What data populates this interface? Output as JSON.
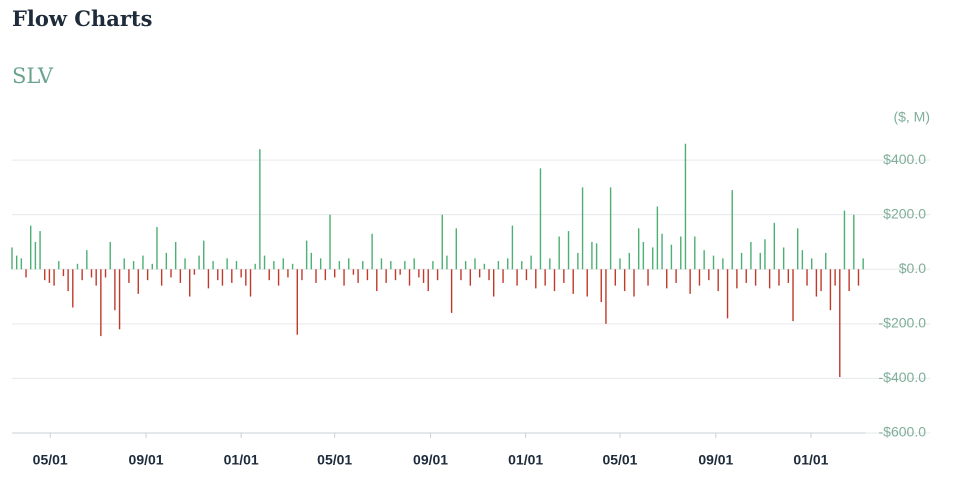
{
  "header": {
    "title": "Flow Charts"
  },
  "chart_data": {
    "type": "bar",
    "title": "SLV",
    "y_unit": "($, M)",
    "positive_color": "#4caf73",
    "negative_color": "#c0392b",
    "grid": true,
    "xlim": [
      0,
      1095
    ],
    "ylim": [
      -600,
      470
    ],
    "xticks": [
      {
        "value": 49,
        "label": "05/01"
      },
      {
        "value": 172,
        "label": "09/01"
      },
      {
        "value": 294,
        "label": "01/01"
      },
      {
        "value": 414,
        "label": "05/01"
      },
      {
        "value": 537,
        "label": "09/01"
      },
      {
        "value": 659,
        "label": "01/01"
      },
      {
        "value": 780,
        "label": "05/01"
      },
      {
        "value": 903,
        "label": "09/01"
      },
      {
        "value": 1025,
        "label": "01/01"
      }
    ],
    "yticks": [
      {
        "value": 400,
        "label": "$400.0"
      },
      {
        "value": 200,
        "label": "$200.0"
      },
      {
        "value": 0,
        "label": "$0.0"
      },
      {
        "value": -200,
        "label": "-$200.0"
      },
      {
        "value": -400,
        "label": "-$400.0"
      },
      {
        "value": -600,
        "label": "-$600.0"
      }
    ],
    "x": [
      0,
      6,
      12,
      18,
      24,
      30,
      36,
      42,
      48,
      54,
      60,
      66,
      72,
      78,
      84,
      90,
      96,
      102,
      108,
      114,
      120,
      126,
      132,
      138,
      144,
      150,
      156,
      162,
      168,
      174,
      180,
      186,
      192,
      198,
      204,
      210,
      216,
      222,
      228,
      234,
      240,
      246,
      252,
      258,
      264,
      270,
      276,
      282,
      288,
      294,
      300,
      306,
      312,
      318,
      324,
      330,
      336,
      342,
      348,
      354,
      360,
      366,
      372,
      378,
      384,
      390,
      396,
      402,
      408,
      414,
      420,
      426,
      432,
      438,
      444,
      450,
      456,
      462,
      468,
      474,
      480,
      486,
      492,
      498,
      504,
      510,
      516,
      522,
      528,
      534,
      540,
      546,
      552,
      558,
      564,
      570,
      576,
      582,
      588,
      594,
      600,
      606,
      612,
      618,
      624,
      630,
      636,
      642,
      648,
      654,
      660,
      666,
      672,
      678,
      684,
      690,
      696,
      702,
      708,
      714,
      720,
      726,
      732,
      738,
      744,
      750,
      756,
      762,
      768,
      774,
      780,
      786,
      792,
      798,
      804,
      810,
      816,
      822,
      828,
      834,
      840,
      846,
      852,
      858,
      864,
      870,
      876,
      882,
      888,
      894,
      900,
      906,
      912,
      918,
      924,
      930,
      936,
      942,
      948,
      954,
      960,
      966,
      972,
      978,
      984,
      990,
      996,
      1002,
      1008,
      1014,
      1020,
      1026,
      1032,
      1038,
      1044,
      1050,
      1056,
      1062,
      1068,
      1074,
      1080,
      1086,
      1092
    ],
    "values": [
      80,
      50,
      40,
      -30,
      160,
      100,
      140,
      -40,
      -50,
      -60,
      30,
      -25,
      -80,
      -140,
      20,
      -40,
      70,
      -30,
      -60,
      -245,
      -30,
      100,
      -150,
      -220,
      40,
      -50,
      30,
      -90,
      50,
      -40,
      20,
      155,
      -60,
      60,
      -30,
      100,
      -50,
      40,
      -100,
      -20,
      50,
      105,
      -70,
      30,
      -40,
      -60,
      40,
      -50,
      30,
      -30,
      -60,
      -100,
      20,
      440,
      50,
      -40,
      30,
      -60,
      40,
      -30,
      20,
      -240,
      -40,
      105,
      60,
      -50,
      40,
      -40,
      200,
      -30,
      30,
      -60,
      40,
      -20,
      -50,
      30,
      -40,
      130,
      -80,
      40,
      -50,
      30,
      -40,
      -20,
      30,
      -60,
      40,
      -30,
      -50,
      -80,
      30,
      -40,
      200,
      50,
      -160,
      150,
      -40,
      30,
      -60,
      40,
      -30,
      20,
      -40,
      -100,
      30,
      -50,
      40,
      160,
      -60,
      30,
      -40,
      50,
      -70,
      370,
      -60,
      40,
      -80,
      120,
      -50,
      140,
      -90,
      60,
      300,
      -100,
      100,
      95,
      -120,
      -200,
      300,
      -60,
      40,
      -80,
      60,
      -100,
      150,
      100,
      -60,
      80,
      230,
      130,
      -70,
      90,
      -50,
      120,
      460,
      -90,
      120,
      -60,
      70,
      -40,
      50,
      -80,
      40,
      -180,
      290,
      -70,
      60,
      -50,
      100,
      -60,
      60,
      110,
      -70,
      170,
      -60,
      80,
      -50,
      -190,
      150,
      70,
      -60,
      40,
      -100,
      -80,
      60,
      -150,
      -60,
      -395,
      215,
      -80,
      200,
      -60,
      40
    ]
  }
}
